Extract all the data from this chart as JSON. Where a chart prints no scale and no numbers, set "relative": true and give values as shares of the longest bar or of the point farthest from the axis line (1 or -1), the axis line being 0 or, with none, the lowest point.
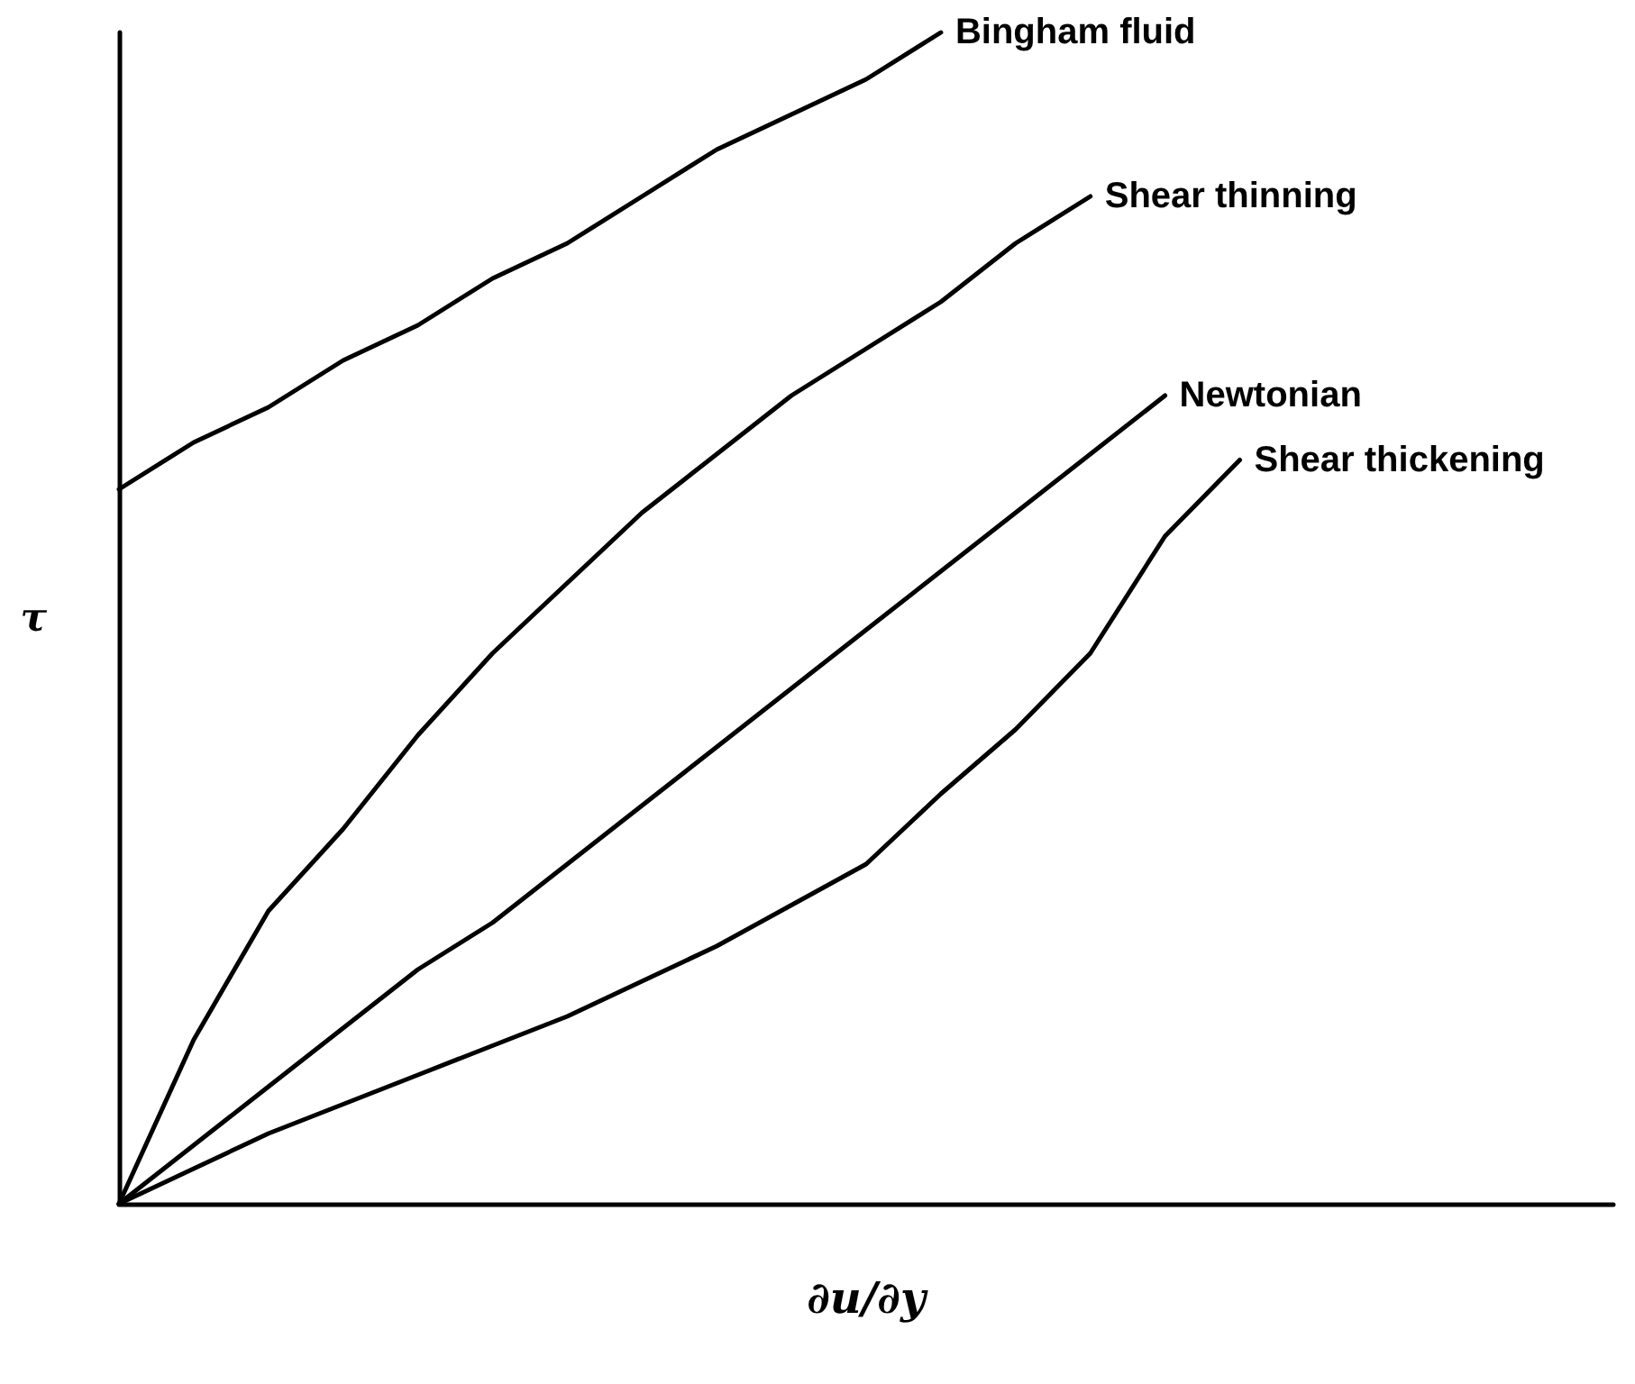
{
  "chart_data": {
    "type": "line",
    "relative": true,
    "xlabel": "∂u/∂y",
    "ylabel": "τ",
    "grid": false,
    "legend": false,
    "marker": "none",
    "line_style": "solid",
    "categories": [
      null,
      null,
      null,
      null,
      null,
      null,
      null,
      null,
      null,
      null,
      null,
      null,
      null,
      null,
      null,
      null,
      null,
      null,
      null,
      null,
      null
    ],
    "series": [
      {
        "name": "Bingham fluid",
        "color": "#000000",
        "values": [
          0.61,
          0.65,
          0.68,
          0.72,
          0.75,
          0.79,
          0.82,
          0.86,
          0.9,
          0.93,
          0.96,
          1.0,
          null,
          null,
          null,
          null,
          null,
          null,
          null,
          null,
          null
        ]
      },
      {
        "name": "Shear thinning",
        "color": "#000000",
        "values": [
          0,
          0.14,
          0.25,
          0.32,
          0.4,
          0.47,
          0.53,
          0.59,
          0.64,
          0.69,
          0.73,
          0.77,
          0.82,
          0.86,
          null,
          null,
          null,
          null,
          null,
          null,
          null
        ]
      },
      {
        "name": "Newtonian",
        "color": "#000000",
        "values": [
          0,
          0.05,
          0.1,
          0.15,
          0.2,
          0.24,
          0.29,
          0.34,
          0.39,
          0.44,
          0.49,
          0.54,
          0.59,
          0.64,
          0.69,
          null,
          null,
          null,
          null,
          null,
          null
        ]
      },
      {
        "name": "Shear thickening",
        "color": "#000000",
        "values": [
          0,
          0.03,
          0.06,
          0.085,
          0.11,
          0.135,
          0.16,
          0.19,
          0.22,
          0.255,
          0.29,
          0.35,
          0.405,
          0.47,
          0.57,
          0.635,
          null,
          null,
          null,
          null,
          null
        ]
      }
    ]
  }
}
